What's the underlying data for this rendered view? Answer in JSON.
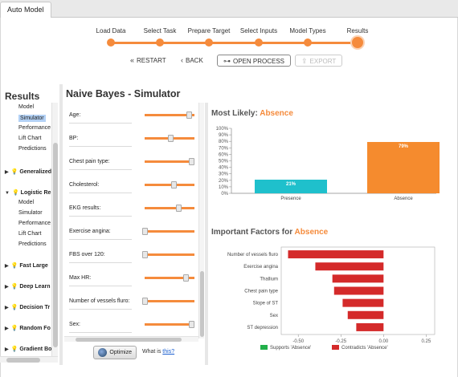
{
  "tab": {
    "label": "Auto Model"
  },
  "stepper": {
    "steps": [
      "Load Data",
      "Select Task",
      "Prepare Target",
      "Select Inputs",
      "Model Types",
      "Results"
    ]
  },
  "nav": {
    "restart": "RESTART",
    "back": "BACK",
    "open_process": "OPEN PROCESS",
    "export": "EXPORT"
  },
  "left": {
    "title": "Results",
    "subitems_top": [
      "Model",
      "Simulator",
      "Performance",
      "Lift Chart",
      "Predictions"
    ],
    "selected": "Simulator",
    "groups": [
      {
        "label": "Generalized",
        "expanded": false
      },
      {
        "label": "Logistic Re",
        "expanded": true,
        "items": [
          "Model",
          "Simulator",
          "Performance",
          "Lift Chart",
          "Predictions"
        ]
      },
      {
        "label": "Fast Large",
        "expanded": false
      },
      {
        "label": "Deep Learn",
        "expanded": false
      },
      {
        "label": "Decision Tr",
        "expanded": false
      },
      {
        "label": "Random Fo",
        "expanded": false
      },
      {
        "label": "Gradient Bo",
        "expanded": false
      }
    ]
  },
  "simulator": {
    "title": "Naive Bayes - Simulator",
    "attributes": [
      {
        "label": "Age:",
        "level": 0.95
      },
      {
        "label": "BP:",
        "level": 0.55
      },
      {
        "label": "Chest pain type:",
        "level": 1.0
      },
      {
        "label": "Cholesterol:",
        "level": 0.62
      },
      {
        "label": "EKG results:",
        "level": 0.72
      },
      {
        "label": "Exercise angina:",
        "level": 0.0
      },
      {
        "label": "FBS over 120:",
        "level": 0.0
      },
      {
        "label": "Max HR:",
        "level": 0.88
      },
      {
        "label": "Number of vessels fluro:",
        "level": 0.0
      },
      {
        "label": "Sex:",
        "level": 1.0
      }
    ],
    "optimize_label": "Optimize",
    "what_is_prefix": "What is",
    "what_is_link": "this?"
  },
  "most_likely": {
    "prefix": "Most Likely:",
    "value": "Absence",
    "accent": "#f58b3c"
  },
  "important_factors": {
    "prefix": "Important Factors for",
    "value": "Absence"
  },
  "chart_data": [
    {
      "type": "bar",
      "categories": [
        "Presence",
        "Absence"
      ],
      "values": [
        21,
        79
      ],
      "data_labels": [
        "21%",
        "79%"
      ],
      "ylim": [
        0,
        100
      ],
      "yticks": [
        "0%",
        "10%",
        "20%",
        "30%",
        "40%",
        "50%",
        "60%",
        "70%",
        "80%",
        "90%",
        "100%"
      ],
      "colors": [
        "#1fc0cc",
        "#f58b2e"
      ]
    },
    {
      "type": "bar",
      "orientation": "horizontal",
      "categories": [
        "Number of vessels fluro",
        "Exercise angina",
        "Thallium",
        "Chest pain type",
        "Slope of ST",
        "Sex",
        "ST depression"
      ],
      "values": [
        -0.56,
        -0.4,
        -0.3,
        -0.29,
        -0.24,
        -0.21,
        -0.16
      ],
      "xlim": [
        -0.6,
        0.3
      ],
      "xticks": [
        "-0.50",
        "-0.25",
        "0.00",
        "0.25"
      ],
      "legend": [
        "Supports 'Absence'",
        "Contradicts 'Absence'"
      ],
      "colors": [
        "#22b04a",
        "#d42a2a"
      ]
    }
  ]
}
